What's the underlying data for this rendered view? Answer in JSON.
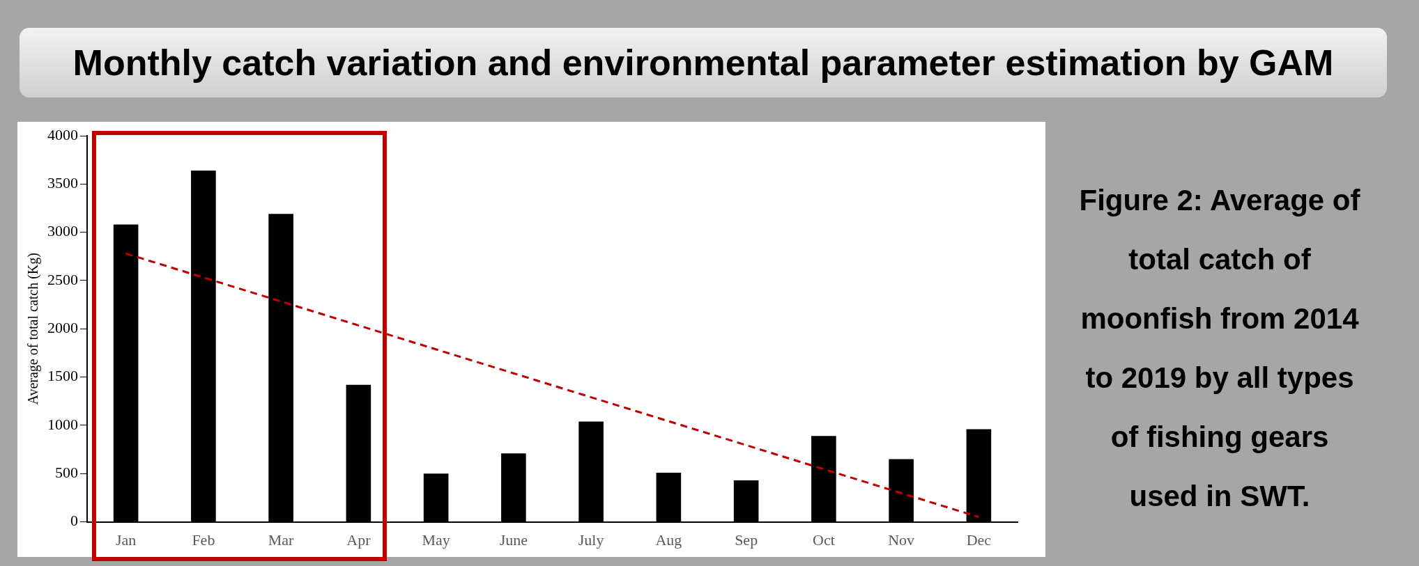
{
  "chart_data": {
    "type": "bar",
    "title": "Monthly catch variation and environmental parameter estimation by GAM",
    "ylabel": "Average of total catch (Kg)",
    "categories": [
      "Jan",
      "Feb",
      "Mar",
      "Apr",
      "May",
      "June",
      "July",
      "Aug",
      "Sep",
      "Oct",
      "Nov",
      "Dec"
    ],
    "series": [
      {
        "color": "#000000",
        "values": [
          3080,
          3640,
          3190,
          1420,
          500,
          710,
          1040,
          510,
          430,
          890,
          650,
          960
        ]
      },
      {
        "type": "line",
        "color": "#c00000",
        "line_style": "dashed",
        "marker": "none",
        "x": [
          "Jan",
          "Dec"
        ],
        "values": [
          2780,
          50
        ]
      }
    ],
    "ylim": [
      0,
      4000
    ],
    "yticks": [
      0,
      500,
      1000,
      1500,
      2000,
      2500,
      3000,
      3500,
      4000
    ],
    "grid": false,
    "legend": false,
    "annotations": [
      "Figure 2: Average of total catch of moonfish from 2014 to 2019 by all types of fishing gears used in SWT."
    ]
  }
}
